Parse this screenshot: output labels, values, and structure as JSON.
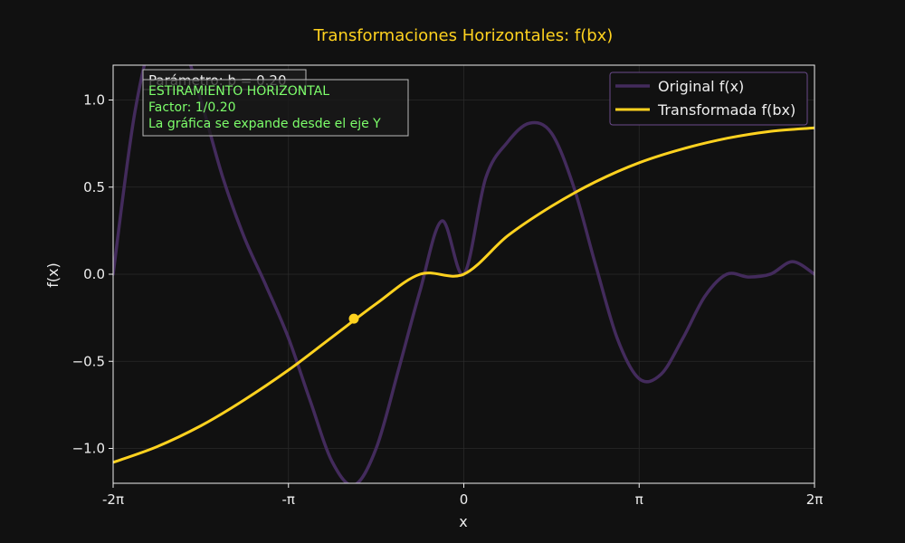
{
  "chart_data": {
    "type": "line",
    "title": "Transformaciones Horizontales: f(bx)",
    "xlabel": "x",
    "ylabel": "f(x)",
    "xlim": [
      -6.2832,
      6.2832
    ],
    "ylim": [
      -1.2,
      1.2
    ],
    "x_ticks": [
      {
        "value": -6.2832,
        "label": "-2π"
      },
      {
        "value": -3.1416,
        "label": "-π"
      },
      {
        "value": 0,
        "label": "0"
      },
      {
        "value": 3.1416,
        "label": "π"
      },
      {
        "value": 6.2832,
        "label": "2π"
      }
    ],
    "y_ticks": [
      {
        "value": -1.0,
        "label": "−1.0"
      },
      {
        "value": -0.5,
        "label": "−0.5"
      },
      {
        "value": 0.0,
        "label": "0.0"
      },
      {
        "value": 0.5,
        "label": "0.5"
      },
      {
        "value": 1.0,
        "label": "1.0"
      }
    ],
    "grid": true,
    "legend_position": "top-right",
    "series": [
      {
        "name": "Original f(x)",
        "color": "#432b5c",
        "x": [
          -6.2832,
          -5.8905,
          -5.4978,
          -5.1051,
          -4.7124,
          -4.3197,
          -3.927,
          -3.5343,
          -3.1416,
          -2.7489,
          -2.3562,
          -1.9635,
          -1.5708,
          -1.1781,
          -0.7854,
          -0.3927,
          0,
          0.3927,
          0.7854,
          1.1781,
          1.5708,
          1.9635,
          2.3562,
          2.7489,
          3.1416,
          3.5343,
          3.927,
          4.3197,
          4.7124,
          5.1051,
          5.4978,
          5.8905,
          6.2832
        ],
        "y": [
          0,
          0.935,
          1.426,
          1.382,
          1.0,
          0.557,
          0.207,
          -0.072,
          -0.367,
          -0.73,
          -1.078,
          -1.21,
          -1.0,
          -0.559,
          -0.096,
          0.306,
          0.0,
          0.552,
          0.759,
          0.867,
          0.81,
          0.507,
          0.059,
          -0.368,
          -0.6,
          -0.574,
          -0.366,
          -0.127,
          0.0,
          -0.016,
          0.001,
          0.072,
          0.0
        ]
      },
      {
        "name": "Transformada f(bx)",
        "color": "#ffd21f",
        "x": [
          -6.2832,
          -5.4978,
          -4.7124,
          -3.927,
          -3.1416,
          -2.3562,
          -1.5708,
          -0.7854,
          0,
          0.7854,
          1.5708,
          2.3562,
          3.1416,
          3.927,
          4.7124,
          5.4978,
          6.2832
        ],
        "y": [
          -1.08,
          -0.99,
          -0.87,
          -0.72,
          -0.55,
          -0.36,
          -0.17,
          0.0,
          0.0,
          0.22,
          0.39,
          0.53,
          0.64,
          0.72,
          0.78,
          0.82,
          0.84
        ]
      }
    ],
    "marker": {
      "x": -1.97,
      "y": -0.255,
      "color": "#ffd21f"
    },
    "info_boxes": [
      {
        "lines": [
          "Parámetro: b = 0.20"
        ]
      },
      {
        "lines": [
          "ESTIRAMIENTO HORIZONTAL",
          "Factor: 1/0.20",
          "La gráfica se expande desde el eje Y"
        ]
      }
    ],
    "colors": {
      "background": "#111111",
      "axes_background": "#111111",
      "text": "#eeeeee",
      "title": "#ffd21f",
      "grid": "#2a2a2a",
      "annotation_text": "#7dff6b",
      "legend_border": "#6a4a8a"
    }
  }
}
